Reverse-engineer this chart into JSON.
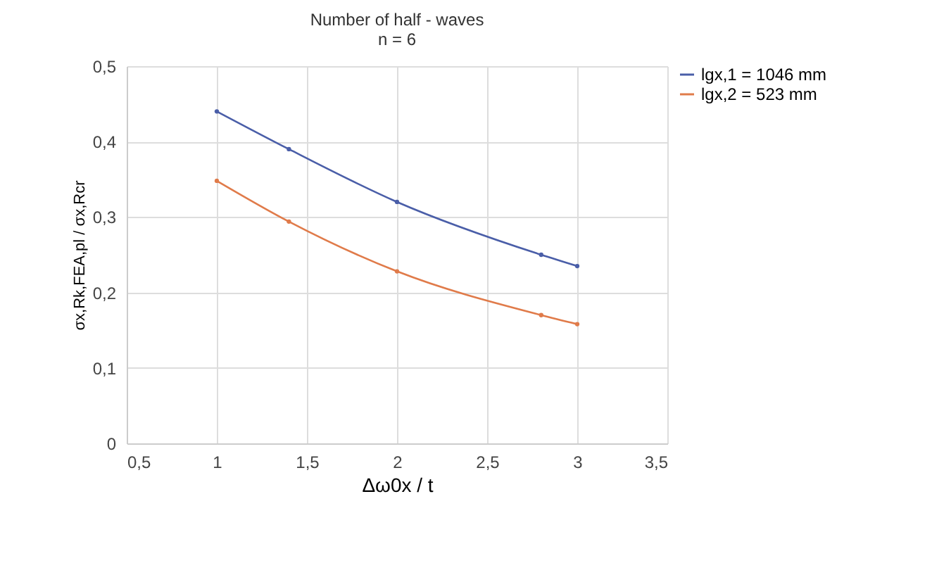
{
  "chart_data": {
    "type": "line",
    "title": "Number of half - waves",
    "subtitle": "n = 6",
    "xlabel": "Δω0x / t",
    "ylabel": "σx,Rk,FEA,pl / σx,Rcr",
    "x": [
      1,
      1.4,
      2,
      2.8,
      3
    ],
    "series": [
      {
        "name": "lgx,1 = 1046 mm",
        "color": "#4a5ea8",
        "values": [
          0.44,
          0.39,
          0.32,
          0.25,
          0.235
        ]
      },
      {
        "name": "lgx,2 = 523 mm",
        "color": "#e07b4a",
        "values": [
          0.348,
          0.294,
          0.228,
          0.17,
          0.158
        ]
      }
    ],
    "xlim": [
      0.5,
      3.5
    ],
    "xticks": [
      {
        "value": 0.5,
        "label": "0,5"
      },
      1,
      {
        "value": 1.5,
        "label": "1,5"
      },
      2,
      {
        "value": 2.5,
        "label": "2,5"
      },
      3,
      {
        "value": 3.5,
        "label": "3,5"
      }
    ],
    "ylim": [
      0,
      0.5
    ],
    "yticks": [
      0,
      {
        "value": 0.1,
        "label": "0,1"
      },
      {
        "value": 0.2,
        "label": "0,2"
      },
      {
        "value": 0.3,
        "label": "0,3"
      },
      {
        "value": 0.4,
        "label": "0,4"
      },
      {
        "value": 0.5,
        "label": "0,5"
      }
    ],
    "grid": true,
    "legend": "top right",
    "marker": "circle",
    "line_style": "solid"
  }
}
